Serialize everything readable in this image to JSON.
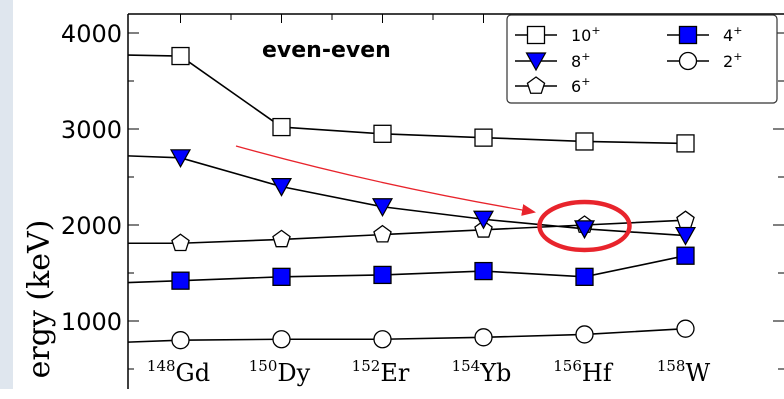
{
  "chart_data": {
    "type": "line",
    "ylabel": "Energy (keV)",
    "ylabel_visible": "ergy (keV)",
    "annotation": "even-even",
    "yticks": [
      "4000",
      "3000",
      "2000",
      "1000"
    ],
    "categories": [
      {
        "mass": "148",
        "element": "Gd"
      },
      {
        "mass": "150",
        "element": "Dy"
      },
      {
        "mass": "152",
        "element": "Er"
      },
      {
        "mass": "154",
        "element": "Yb"
      },
      {
        "mass": "156",
        "element": "Hf"
      },
      {
        "mass": "158",
        "element": "W"
      }
    ],
    "x_range": [
      -0.55,
      5.5
    ],
    "ylim": [
      340,
      4200
    ],
    "series": [
      {
        "name": "10",
        "sup": "+",
        "marker": "square-open",
        "values": [
          3760,
          3020,
          2950,
          2910,
          2870,
          2850
        ],
        "lead": 3770
      },
      {
        "name": "8",
        "sup": "+",
        "marker": "triangle-down-filled",
        "values": [
          2700,
          2400,
          2190,
          2060,
          1960,
          1890
        ],
        "lead": 2720
      },
      {
        "name": "6",
        "sup": "+",
        "marker": "pentagon-open",
        "values": [
          1810,
          1850,
          1900,
          1950,
          2000,
          2050
        ],
        "lead": 1810
      },
      {
        "name": "4",
        "sup": "+",
        "marker": "square-filled",
        "values": [
          1420,
          1460,
          1480,
          1520,
          1460,
          1680
        ],
        "lead": 1400
      },
      {
        "name": "2",
        "sup": "+",
        "marker": "circle-open",
        "values": [
          800,
          810,
          810,
          830,
          860,
          920
        ],
        "lead": 780
      }
    ],
    "legend": {
      "position": "top-right",
      "columns": 2,
      "order": [
        "10",
        "4",
        "8",
        "2",
        "6"
      ]
    },
    "highlight": {
      "category": "156",
      "y": 1990,
      "note": "red circle marks 6+ / 8+ crossing at Hf, red arrow points to it from the 8+ curve at Dy"
    },
    "grid": false
  },
  "colors": {
    "marker_fill": "#0000ff",
    "highlight": "#e8242c",
    "arrow": "#e8242c",
    "strip": "#dfe6ee"
  }
}
